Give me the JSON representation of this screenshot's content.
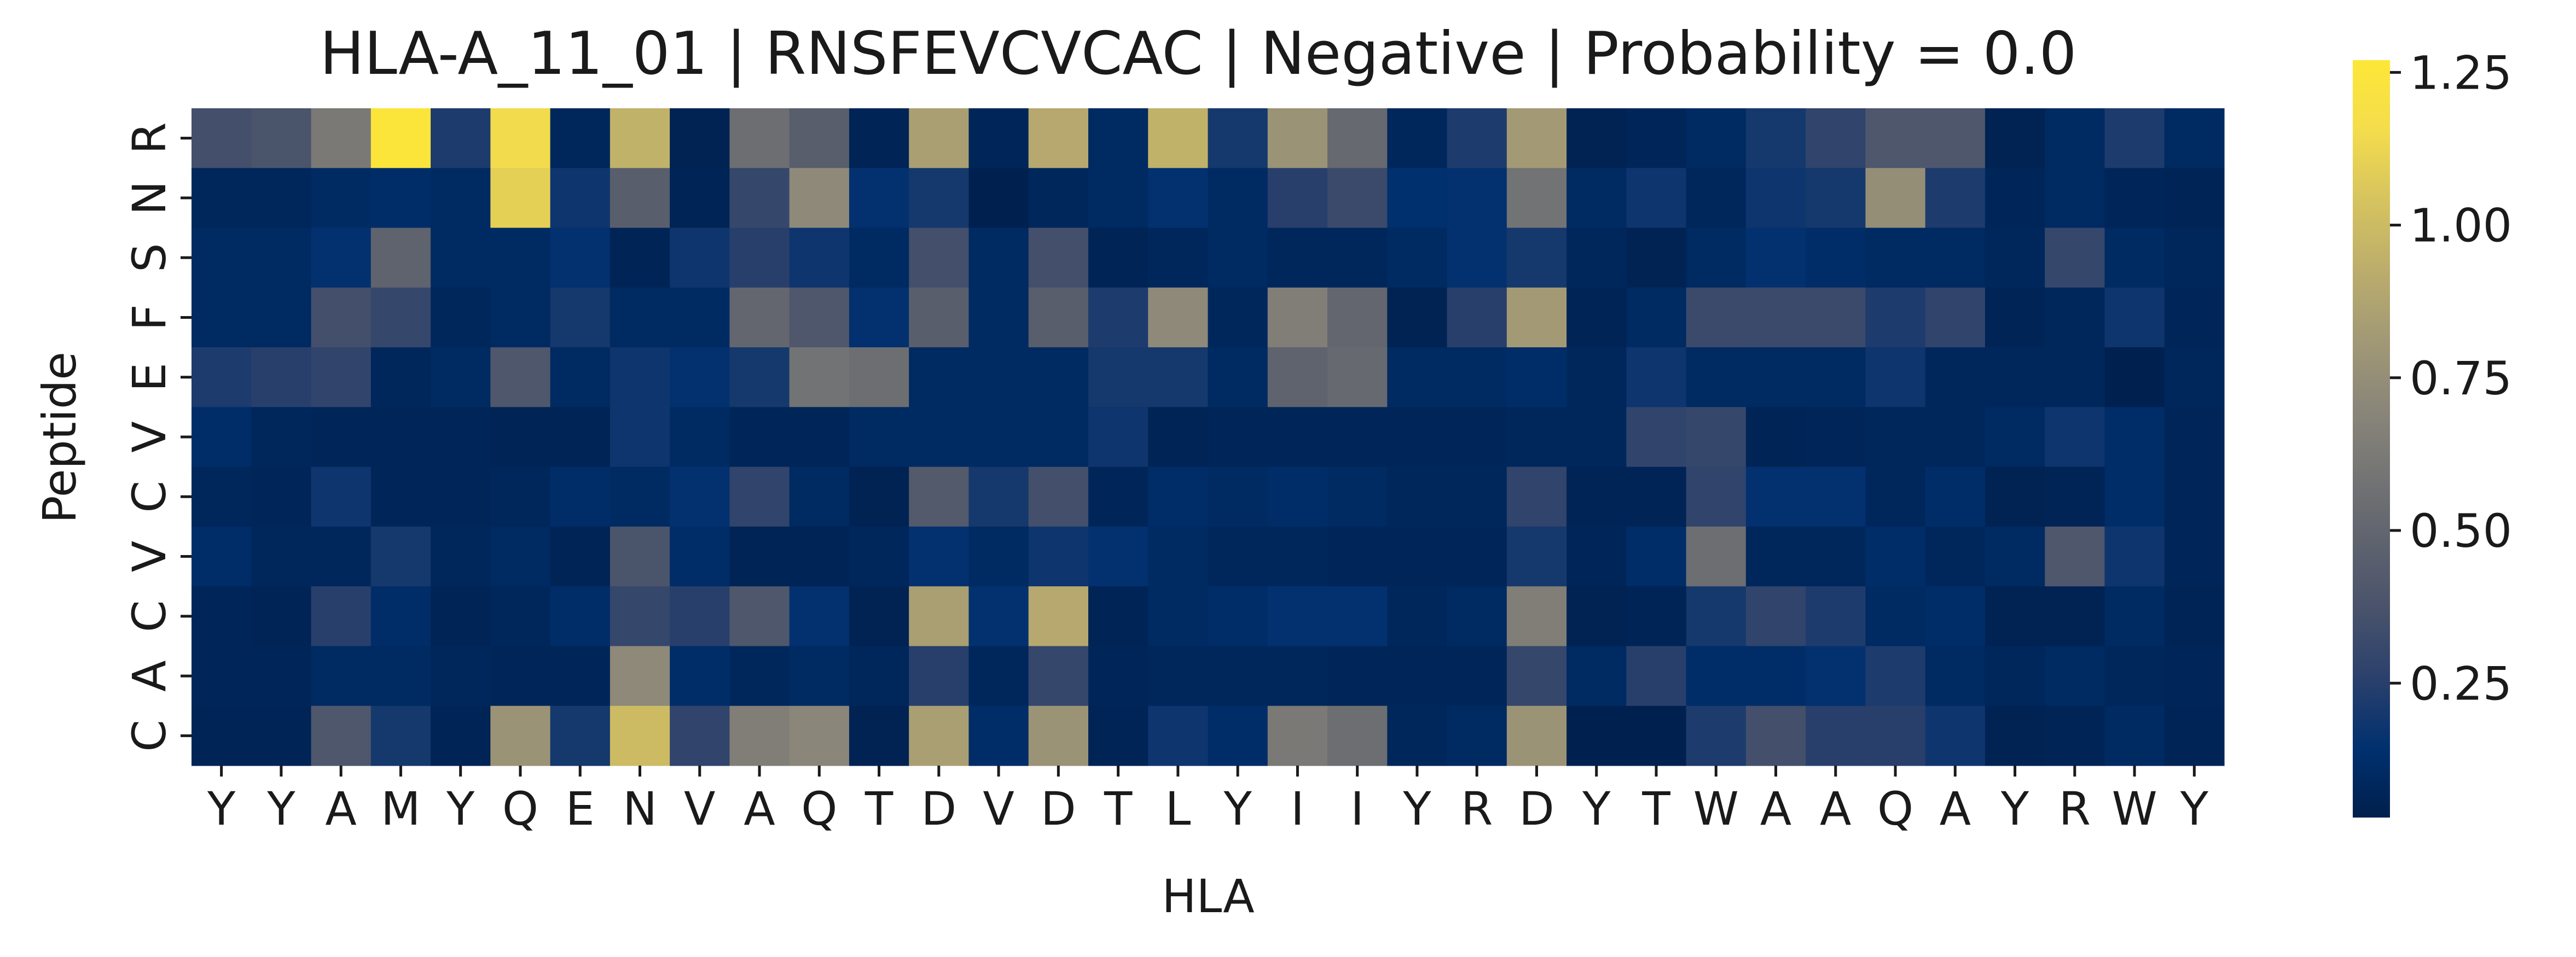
{
  "chart_data": {
    "type": "heatmap",
    "title": "HLA-A_11_01 | RNSFEVCVCAC | Negative | Probability = 0.0",
    "xlabel": "HLA",
    "ylabel": "Peptide",
    "x_categories": [
      "Y",
      "Y",
      "A",
      "M",
      "Y",
      "Q",
      "E",
      "N",
      "V",
      "A",
      "Q",
      "T",
      "D",
      "V",
      "D",
      "T",
      "L",
      "Y",
      "I",
      "I",
      "Y",
      "R",
      "D",
      "Y",
      "T",
      "W",
      "A",
      "A",
      "Q",
      "A",
      "Y",
      "R",
      "W",
      "Y"
    ],
    "y_categories": [
      "R",
      "N",
      "S",
      "F",
      "E",
      "V",
      "C",
      "V",
      "C",
      "A",
      "C"
    ],
    "colorbar": {
      "min": 0.03,
      "max": 1.27,
      "ticks": [
        0.25,
        0.5,
        0.75,
        1.0,
        1.25
      ],
      "tick_labels": [
        "0.25",
        "0.50",
        "0.75",
        "1.00",
        "1.25"
      ]
    },
    "colormap": "cividis",
    "colormap_stops": [
      "#00204d",
      "#00306f",
      "#2a406c",
      "#48526b",
      "#5f636e",
      "#757575",
      "#8b8779",
      "#a39a75",
      "#bdae6b",
      "#d7c45f",
      "#f4dd4c",
      "#fde737"
    ],
    "values": [
      [
        0.35,
        0.38,
        0.62,
        1.25,
        0.22,
        1.15,
        0.08,
        0.95,
        0.05,
        0.55,
        0.45,
        0.06,
        0.85,
        0.07,
        0.9,
        0.1,
        0.95,
        0.2,
        0.78,
        0.52,
        0.08,
        0.22,
        0.82,
        0.05,
        0.07,
        0.1,
        0.2,
        0.28,
        0.4,
        0.4,
        0.05,
        0.1,
        0.22,
        0.1
      ],
      [
        0.08,
        0.08,
        0.1,
        0.12,
        0.1,
        1.1,
        0.18,
        0.45,
        0.06,
        0.3,
        0.72,
        0.15,
        0.2,
        0.04,
        0.08,
        0.1,
        0.15,
        0.1,
        0.25,
        0.32,
        0.14,
        0.15,
        0.58,
        0.1,
        0.18,
        0.08,
        0.18,
        0.2,
        0.75,
        0.22,
        0.07,
        0.1,
        0.07,
        0.06
      ],
      [
        0.1,
        0.1,
        0.15,
        0.48,
        0.1,
        0.1,
        0.15,
        0.06,
        0.18,
        0.25,
        0.18,
        0.1,
        0.35,
        0.1,
        0.35,
        0.06,
        0.08,
        0.1,
        0.08,
        0.08,
        0.1,
        0.15,
        0.2,
        0.08,
        0.05,
        0.1,
        0.15,
        0.12,
        0.1,
        0.1,
        0.08,
        0.3,
        0.1,
        0.08
      ],
      [
        0.1,
        0.1,
        0.35,
        0.3,
        0.08,
        0.1,
        0.2,
        0.1,
        0.1,
        0.5,
        0.4,
        0.15,
        0.45,
        0.1,
        0.45,
        0.22,
        0.72,
        0.08,
        0.65,
        0.5,
        0.05,
        0.25,
        0.82,
        0.06,
        0.1,
        0.32,
        0.32,
        0.32,
        0.22,
        0.28,
        0.06,
        0.08,
        0.18,
        0.07
      ],
      [
        0.22,
        0.25,
        0.28,
        0.08,
        0.1,
        0.4,
        0.1,
        0.18,
        0.15,
        0.2,
        0.58,
        0.55,
        0.1,
        0.1,
        0.1,
        0.2,
        0.2,
        0.1,
        0.48,
        0.52,
        0.1,
        0.1,
        0.12,
        0.08,
        0.18,
        0.1,
        0.1,
        0.1,
        0.18,
        0.08,
        0.08,
        0.08,
        0.04,
        0.08
      ],
      [
        0.12,
        0.08,
        0.07,
        0.07,
        0.07,
        0.06,
        0.06,
        0.18,
        0.1,
        0.07,
        0.07,
        0.1,
        0.1,
        0.1,
        0.1,
        0.18,
        0.06,
        0.07,
        0.07,
        0.07,
        0.07,
        0.07,
        0.08,
        0.08,
        0.28,
        0.3,
        0.06,
        0.07,
        0.08,
        0.08,
        0.1,
        0.18,
        0.12,
        0.07
      ],
      [
        0.08,
        0.07,
        0.18,
        0.07,
        0.07,
        0.08,
        0.12,
        0.1,
        0.15,
        0.28,
        0.1,
        0.05,
        0.42,
        0.2,
        0.35,
        0.07,
        0.12,
        0.1,
        0.12,
        0.1,
        0.08,
        0.08,
        0.28,
        0.06,
        0.06,
        0.28,
        0.15,
        0.15,
        0.08,
        0.12,
        0.05,
        0.06,
        0.12,
        0.07
      ],
      [
        0.12,
        0.08,
        0.08,
        0.2,
        0.08,
        0.1,
        0.06,
        0.38,
        0.12,
        0.06,
        0.06,
        0.08,
        0.15,
        0.1,
        0.18,
        0.15,
        0.1,
        0.08,
        0.08,
        0.07,
        0.07,
        0.07,
        0.2,
        0.07,
        0.12,
        0.55,
        0.08,
        0.08,
        0.12,
        0.08,
        0.1,
        0.4,
        0.18,
        0.07
      ],
      [
        0.07,
        0.06,
        0.25,
        0.12,
        0.06,
        0.08,
        0.12,
        0.3,
        0.25,
        0.4,
        0.15,
        0.05,
        0.85,
        0.15,
        0.9,
        0.06,
        0.1,
        0.12,
        0.15,
        0.15,
        0.08,
        0.1,
        0.65,
        0.05,
        0.06,
        0.2,
        0.28,
        0.22,
        0.1,
        0.12,
        0.05,
        0.05,
        0.1,
        0.06
      ],
      [
        0.07,
        0.07,
        0.1,
        0.1,
        0.08,
        0.07,
        0.07,
        0.72,
        0.12,
        0.08,
        0.1,
        0.08,
        0.25,
        0.08,
        0.3,
        0.07,
        0.08,
        0.08,
        0.08,
        0.07,
        0.07,
        0.07,
        0.3,
        0.1,
        0.25,
        0.12,
        0.12,
        0.15,
        0.22,
        0.1,
        0.08,
        0.1,
        0.08,
        0.07
      ],
      [
        0.06,
        0.06,
        0.4,
        0.2,
        0.06,
        0.78,
        0.2,
        1.0,
        0.28,
        0.65,
        0.7,
        0.05,
        0.85,
        0.12,
        0.78,
        0.06,
        0.18,
        0.12,
        0.62,
        0.55,
        0.08,
        0.1,
        0.78,
        0.04,
        0.04,
        0.22,
        0.35,
        0.25,
        0.25,
        0.18,
        0.05,
        0.06,
        0.1,
        0.06
      ]
    ]
  }
}
